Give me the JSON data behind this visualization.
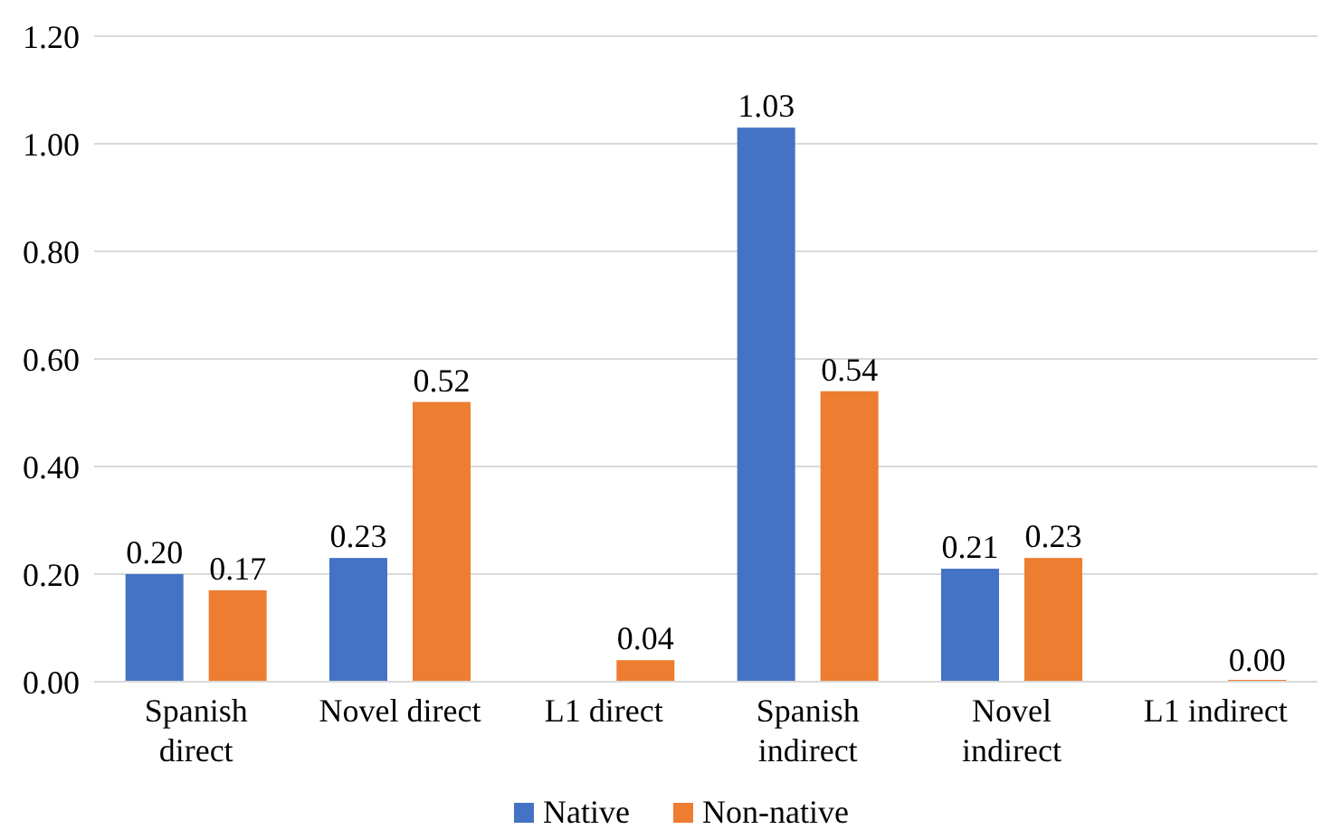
{
  "chart_data": {
    "type": "bar",
    "categories": [
      "Spanish direct",
      "Novel direct",
      "L1 direct",
      "Spanish indirect",
      "Novel indirect",
      "L1 indirect"
    ],
    "series": [
      {
        "name": "Native",
        "color": "#4472c4",
        "values": [
          0.2,
          0.23,
          null,
          1.03,
          0.21,
          null
        ],
        "value_labels": [
          "0.20",
          "0.23",
          null,
          "1.03",
          "0.21",
          null
        ]
      },
      {
        "name": "Non-native",
        "color": "#ed7d31",
        "values": [
          0.17,
          0.52,
          0.04,
          0.54,
          0.23,
          0
        ],
        "value_labels": [
          "0.17",
          "0.52",
          "0.04",
          "0.54",
          "0.23",
          "0.00"
        ]
      }
    ],
    "ylim": [
      0,
      1.2
    ],
    "yticks": [
      {
        "value": 0,
        "label": "0.00"
      },
      {
        "value": 0.2,
        "label": "0.20"
      },
      {
        "value": 0.4,
        "label": "0.40"
      },
      {
        "value": 0.6,
        "label": "0.60"
      },
      {
        "value": 0.8,
        "label": "0.80"
      },
      {
        "value": 1,
        "label": "1.00"
      },
      {
        "value": 1.2,
        "label": "1.20"
      }
    ],
    "grid": "y",
    "legend": "bottom"
  }
}
